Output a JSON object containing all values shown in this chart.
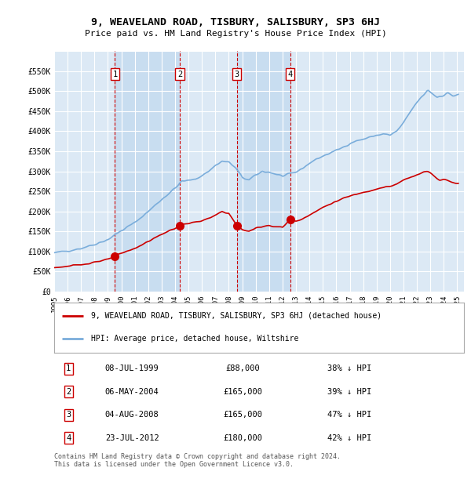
{
  "title": "9, WEAVELAND ROAD, TISBURY, SALISBURY, SP3 6HJ",
  "subtitle": "Price paid vs. HM Land Registry's House Price Index (HPI)",
  "background_color": "#ffffff",
  "plot_bg_color": "#dce9f5",
  "plot_band_color": "#c8ddf0",
  "grid_color": "#ffffff",
  "legend_label_red": "9, WEAVELAND ROAD, TISBURY, SALISBURY, SP3 6HJ (detached house)",
  "legend_label_blue": "HPI: Average price, detached house, Wiltshire",
  "footer": "Contains HM Land Registry data © Crown copyright and database right 2024.\nThis data is licensed under the Open Government Licence v3.0.",
  "transactions": [
    {
      "num": 1,
      "date": "08-JUL-1999",
      "price": 88000,
      "pct": "38% ↓ HPI",
      "x": 1999.52
    },
    {
      "num": 2,
      "date": "06-MAY-2004",
      "price": 165000,
      "pct": "39% ↓ HPI",
      "x": 2004.35
    },
    {
      "num": 3,
      "date": "04-AUG-2008",
      "price": 165000,
      "pct": "47% ↓ HPI",
      "x": 2008.59
    },
    {
      "num": 4,
      "date": "23-JUL-2012",
      "price": 180000,
      "pct": "42% ↓ HPI",
      "x": 2012.56
    }
  ],
  "ylim": [
    0,
    600000
  ],
  "yticks": [
    0,
    50000,
    100000,
    150000,
    200000,
    250000,
    300000,
    350000,
    400000,
    450000,
    500000,
    550000,
    600000
  ],
  "ytick_labels": [
    "£0",
    "£50K",
    "£100K",
    "£150K",
    "£200K",
    "£250K",
    "£300K",
    "£350K",
    "£400K",
    "£450K",
    "£500K",
    "£550K",
    ""
  ],
  "xlim": [
    1995.0,
    2025.5
  ],
  "xticks": [
    1995,
    1996,
    1997,
    1998,
    1999,
    2000,
    2001,
    2002,
    2003,
    2004,
    2005,
    2006,
    2007,
    2008,
    2009,
    2010,
    2011,
    2012,
    2013,
    2014,
    2015,
    2016,
    2017,
    2018,
    2019,
    2020,
    2021,
    2022,
    2023,
    2024,
    2025
  ],
  "red_color": "#cc0000",
  "blue_color": "#7aaddb",
  "vline_color": "#cc0000",
  "marker_color": "#cc0000",
  "marker_size": 7
}
